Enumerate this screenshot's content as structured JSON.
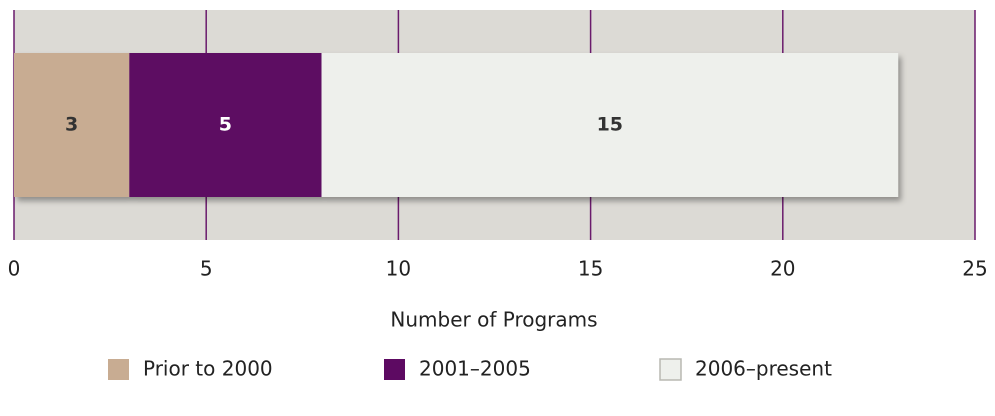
{
  "chart_data": {
    "type": "stacked_barh",
    "categories": [
      null
    ],
    "series": [
      {
        "name": "Prior to 2000",
        "color": "#c8ac92",
        "values": [
          3
        ]
      },
      {
        "name": "2001–2005",
        "color": "#5d0a62",
        "values": [
          5
        ]
      },
      {
        "name": "2006–present",
        "color": "#eef0ec",
        "values": [
          15
        ]
      }
    ],
    "xlabel": "Number of Programs",
    "xlim": [
      0,
      25
    ],
    "xticks": [
      0,
      5,
      10,
      15,
      20,
      25
    ],
    "grid": true,
    "plot_background": "#dcdad5",
    "grid_color": "#6a1a6c",
    "legend": "bottom"
  }
}
